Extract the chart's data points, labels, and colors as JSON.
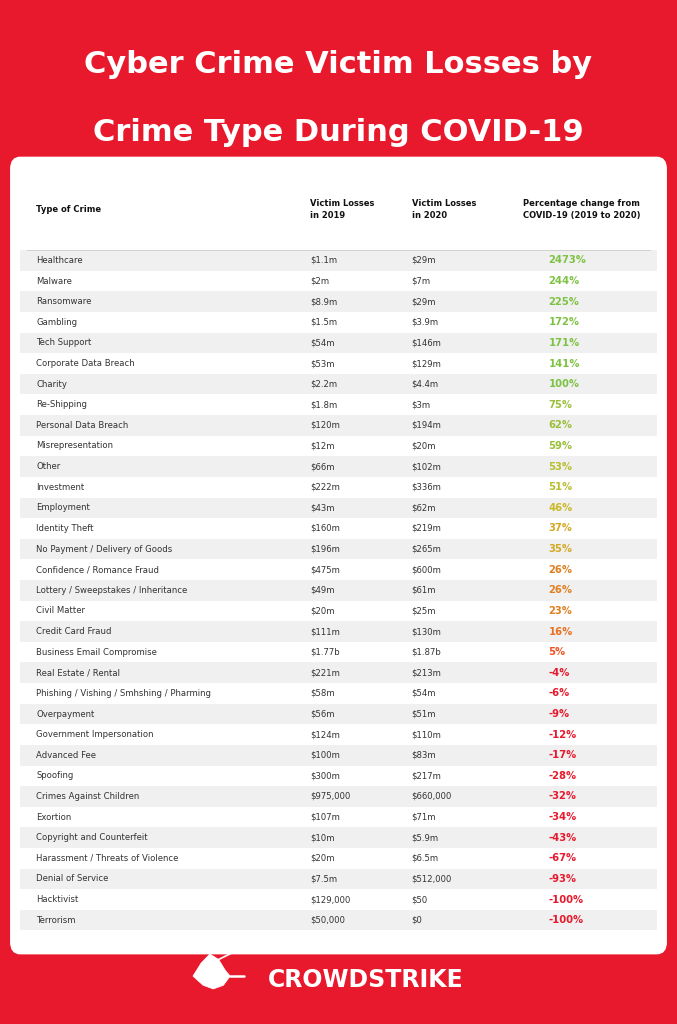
{
  "title_line1": "Cyber Crime Victim Losses by",
  "title_line2": "Crime Type During COVID-19",
  "header_col1": "Type of Crime",
  "header_col2": "Victim Losses\nin 2019",
  "header_col3": "Victim Losses\nin 2020",
  "header_col4": "Percentage change from\nCOVID-19 (2019 to 2020)",
  "bg_color": "#E8192C",
  "table_bg": "#FFFFFF",
  "rows": [
    {
      "crime": "Healthcare",
      "v2019": "$1.1m",
      "v2020": "$29m",
      "pct": "2473%",
      "pct_color": "#7DC242"
    },
    {
      "crime": "Malware",
      "v2019": "$2m",
      "v2020": "$7m",
      "pct": "244%",
      "pct_color": "#7DC242"
    },
    {
      "crime": "Ransomware",
      "v2019": "$8.9m",
      "v2020": "$29m",
      "pct": "225%",
      "pct_color": "#7DC242"
    },
    {
      "crime": "Gambling",
      "v2019": "$1.5m",
      "v2020": "$3.9m",
      "pct": "172%",
      "pct_color": "#7DC242"
    },
    {
      "crime": "Tech Support",
      "v2019": "$54m",
      "v2020": "$146m",
      "pct": "171%",
      "pct_color": "#7DC242"
    },
    {
      "crime": "Corporate Data Breach",
      "v2019": "$53m",
      "v2020": "$129m",
      "pct": "141%",
      "pct_color": "#7DC242"
    },
    {
      "crime": "Charity",
      "v2019": "$2.2m",
      "v2020": "$4.4m",
      "pct": "100%",
      "pct_color": "#7DC242"
    },
    {
      "crime": "Re-Shipping",
      "v2019": "$1.8m",
      "v2020": "$3m",
      "pct": "75%",
      "pct_color": "#9BBF3A"
    },
    {
      "crime": "Personal Data Breach",
      "v2019": "$120m",
      "v2020": "$194m",
      "pct": "62%",
      "pct_color": "#9BBF3A"
    },
    {
      "crime": "Misrepresentation",
      "v2019": "$12m",
      "v2020": "$20m",
      "pct": "59%",
      "pct_color": "#9BBF3A"
    },
    {
      "crime": "Other",
      "v2019": "$66m",
      "v2020": "$102m",
      "pct": "53%",
      "pct_color": "#B8BE30"
    },
    {
      "crime": "Investment",
      "v2019": "$222m",
      "v2020": "$336m",
      "pct": "51%",
      "pct_color": "#B8BE30"
    },
    {
      "crime": "Employment",
      "v2019": "$43m",
      "v2020": "$62m",
      "pct": "46%",
      "pct_color": "#C9B82A"
    },
    {
      "crime": "Identity Theft",
      "v2019": "$160m",
      "v2020": "$219m",
      "pct": "37%",
      "pct_color": "#D4A824"
    },
    {
      "crime": "No Payment / Delivery of Goods",
      "v2019": "$196m",
      "v2020": "$265m",
      "pct": "35%",
      "pct_color": "#D4A824"
    },
    {
      "crime": "Confidence / Romance Fraud",
      "v2019": "$475m",
      "v2020": "$600m",
      "pct": "26%",
      "pct_color": "#E08020"
    },
    {
      "crime": "Lottery / Sweepstakes / Inheritance",
      "v2019": "$49m",
      "v2020": "$61m",
      "pct": "26%",
      "pct_color": "#E08020"
    },
    {
      "crime": "Civil Matter",
      "v2019": "$20m",
      "v2020": "$25m",
      "pct": "23%",
      "pct_color": "#E08020"
    },
    {
      "crime": "Credit Card Fraud",
      "v2019": "$111m",
      "v2020": "$130m",
      "pct": "16%",
      "pct_color": "#E87020"
    },
    {
      "crime": "Business Email Compromise",
      "v2019": "$1.77b",
      "v2020": "$1.87b",
      "pct": "5%",
      "pct_color": "#F05020"
    },
    {
      "crime": "Real Estate / Rental",
      "v2019": "$221m",
      "v2020": "$213m",
      "pct": "-4%",
      "pct_color": "#E8192C"
    },
    {
      "crime": "Phishing / Vishing / Smhshing / Pharming",
      "v2019": "$58m",
      "v2020": "$54m",
      "pct": "-6%",
      "pct_color": "#E8192C"
    },
    {
      "crime": "Overpayment",
      "v2019": "$56m",
      "v2020": "$51m",
      "pct": "-9%",
      "pct_color": "#E8192C"
    },
    {
      "crime": "Government Impersonation",
      "v2019": "$124m",
      "v2020": "$110m",
      "pct": "-12%",
      "pct_color": "#E8192C"
    },
    {
      "crime": "Advanced Fee",
      "v2019": "$100m",
      "v2020": "$83m",
      "pct": "-17%",
      "pct_color": "#E8192C"
    },
    {
      "crime": "Spoofing",
      "v2019": "$300m",
      "v2020": "$217m",
      "pct": "-28%",
      "pct_color": "#E8192C"
    },
    {
      "crime": "Crimes Against Children",
      "v2019": "$975,000",
      "v2020": "$660,000",
      "pct": "-32%",
      "pct_color": "#E8192C"
    },
    {
      "crime": "Exortion",
      "v2019": "$107m",
      "v2020": "$71m",
      "pct": "-34%",
      "pct_color": "#E8192C"
    },
    {
      "crime": "Copyright and Counterfeit",
      "v2019": "$10m",
      "v2020": "$5.9m",
      "pct": "-43%",
      "pct_color": "#E8192C"
    },
    {
      "crime": "Harassment / Threats of Violence",
      "v2019": "$20m",
      "v2020": "$6.5m",
      "pct": "-67%",
      "pct_color": "#E8192C"
    },
    {
      "crime": "Denial of Service",
      "v2019": "$7.5m",
      "v2020": "$512,000",
      "pct": "-93%",
      "pct_color": "#E8192C"
    },
    {
      "crime": "Hacktivist",
      "v2019": "$129,000",
      "v2020": "$50",
      "pct": "-100%",
      "pct_color": "#E8192C"
    },
    {
      "crime": "Terrorism",
      "v2019": "$50,000",
      "v2020": "$0",
      "pct": "-100%",
      "pct_color": "#E8192C"
    }
  ],
  "row_bg_odd": "#F0F0F0",
  "row_bg_even": "#FFFFFF",
  "footer_logo": "CROWDSTRIKE"
}
